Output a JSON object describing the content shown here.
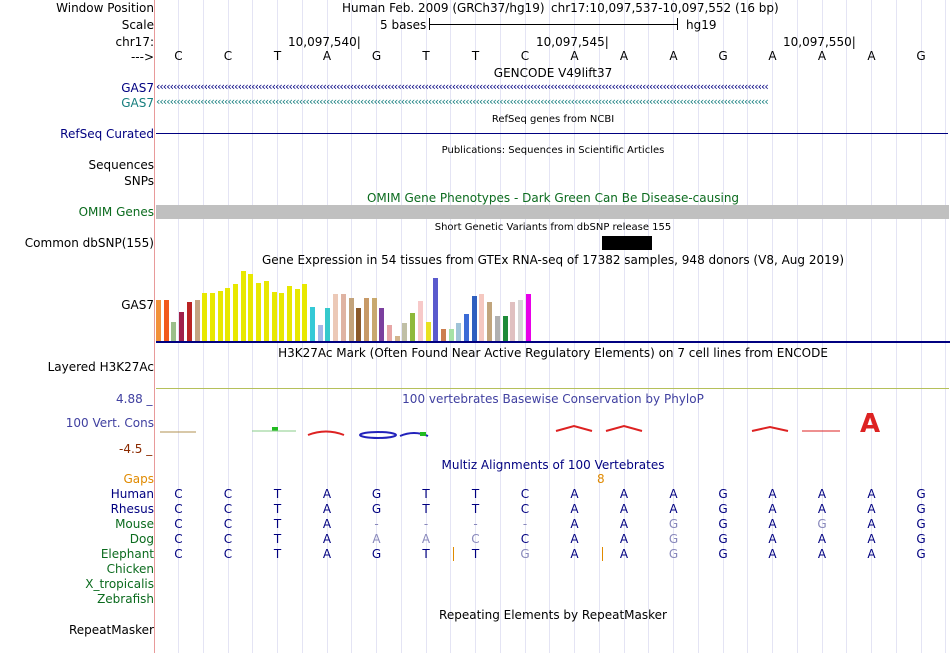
{
  "header": {
    "window_position_label": "Window Position",
    "scale_label": "Scale",
    "chrom_label": "chr17:",
    "arrow_label": "--->",
    "assembly_text": "Human Feb. 2009 (GRCh37/hg19)",
    "position_text": "chr17:10,097,537-10,097,552 (16 bp)",
    "scale_text": "5 bases",
    "db_text": "hg19",
    "coord_ticks": [
      "10,097,540",
      "10,097,545",
      "10,097,550"
    ]
  },
  "sequence": {
    "bases": [
      "C",
      "C",
      "T",
      "A",
      "G",
      "T",
      "T",
      "C",
      "A",
      "A",
      "A",
      "G",
      "A",
      "A",
      "A",
      "G"
    ]
  },
  "tracks": {
    "gencode": {
      "title": "GENCODE V49lift37",
      "genes": [
        "GAS7",
        "GAS7"
      ]
    },
    "refseq": {
      "title": "RefSeq genes from NCBI",
      "label": "RefSeq Curated"
    },
    "publications": {
      "title": "Publications: Sequences in Scientific Articles",
      "labels": [
        "Sequences",
        "SNPs"
      ]
    },
    "omim": {
      "title": "OMIM Gene Phenotypes - Dark Green Can Be Disease-causing",
      "label": "OMIM Genes"
    },
    "dbsnp": {
      "title": "Short Genetic Variants from dbSNP release 155",
      "label": "Common dbSNP(155)"
    },
    "gtex": {
      "title": "Gene Expression in 54 tissues from GTEx RNA-seq of 17382 samples, 948 donors (V8, Aug 2019)",
      "label": "GAS7",
      "bar_values": [
        42,
        42,
        20,
        30,
        40,
        42,
        49,
        49,
        51,
        54,
        59,
        72,
        69,
        60,
        62,
        50,
        49,
        56,
        53,
        59,
        35,
        16,
        34,
        48,
        48,
        44,
        34,
        44,
        44,
        34,
        16,
        5,
        18,
        29,
        41,
        20,
        65,
        12,
        12,
        18,
        28,
        46,
        48,
        40,
        26,
        26,
        40,
        42,
        48
      ],
      "bar_colors": [
        "#f2913a",
        "#f25a1c",
        "#9bbf8a",
        "#a0204a",
        "#ba2424",
        "#c4a482",
        "#e8e800",
        "#e8e800",
        "#e8e800",
        "#e8e800",
        "#e8e800",
        "#e8e800",
        "#e8e800",
        "#e8e800",
        "#e8e800",
        "#e8e800",
        "#e8e800",
        "#e8e800",
        "#e8e800",
        "#e8e800",
        "#34c9d6",
        "#a6b7e6",
        "#36c9cc",
        "#ecc9b7",
        "#dfb3a2",
        "#c3a37b",
        "#8b5a2b",
        "#c89a67",
        "#c9a96e",
        "#7b3f9e",
        "#e7a6a6",
        "#d2b48c",
        "#c0bfa6",
        "#8fb93a",
        "#f7c9c9",
        "#e9e120",
        "#5a5acd",
        "#cc7e4f",
        "#a6e2a5",
        "#a0c4d8",
        "#3b6bd6",
        "#2f5fbf",
        "#f5c8c0",
        "#c1a57c",
        "#b0b0b0",
        "#1e8b3a",
        "#e0c0c0",
        "#d7d7d7",
        "#e800e8"
      ]
    },
    "h3k27ac": {
      "title": "H3K27Ac Mark (Often Found Near Active Regulatory Elements) on 7 cell lines from ENCODE",
      "label": "Layered H3K27Ac"
    },
    "phylop": {
      "title": "100 vertebrates Basewise Conservation by PhyloP",
      "label": "100 Vert. Cons",
      "max": "4.88 _",
      "min": "-4.5 _"
    },
    "multiz": {
      "title": "Multiz Alignments of 100 Vertebrates",
      "gaps_label": "Gaps",
      "gap_count": "8",
      "species": [
        {
          "name": "Human",
          "bases": [
            "C",
            "C",
            "T",
            "A",
            "G",
            "T",
            "T",
            "C",
            "A",
            "A",
            "A",
            "G",
            "A",
            "A",
            "A",
            "G"
          ]
        },
        {
          "name": "Rhesus",
          "bases": [
            "C",
            "C",
            "T",
            "A",
            "G",
            "T",
            "T",
            "C",
            "A",
            "A",
            "A",
            "G",
            "A",
            "A",
            "A",
            "G"
          ]
        },
        {
          "name": "Mouse",
          "bases": [
            "C",
            "C",
            "T",
            "A",
            "-",
            "-",
            "-",
            "-",
            "A",
            "A",
            "G",
            "G",
            "A",
            "G",
            "A",
            "G"
          ]
        },
        {
          "name": "Dog",
          "bases": [
            "C",
            "C",
            "T",
            "A",
            "A",
            "A",
            "C",
            "C",
            "A",
            "A",
            "G",
            "G",
            "A",
            "A",
            "A",
            "G"
          ]
        },
        {
          "name": "Elephant",
          "bases": [
            "C",
            "C",
            "T",
            "A",
            "G",
            "T",
            "T",
            "G",
            "A",
            "A",
            "G",
            "G",
            "A",
            "A",
            "A",
            "G"
          ]
        },
        {
          "name": "Chicken",
          "bases": []
        },
        {
          "name": "X_tropicalis",
          "bases": []
        },
        {
          "name": "Zebrafish",
          "bases": []
        }
      ]
    },
    "repeatmasker": {
      "title": "Repeating Elements by RepeatMasker",
      "label": "RepeatMasker"
    }
  },
  "colors": {
    "navy": "#000080",
    "omim_bar": "#c0c0c0",
    "h3k27ac_line": "#b5c05a",
    "gencode_gene1": "#000080",
    "gencode_gene2": "#167e7e"
  }
}
